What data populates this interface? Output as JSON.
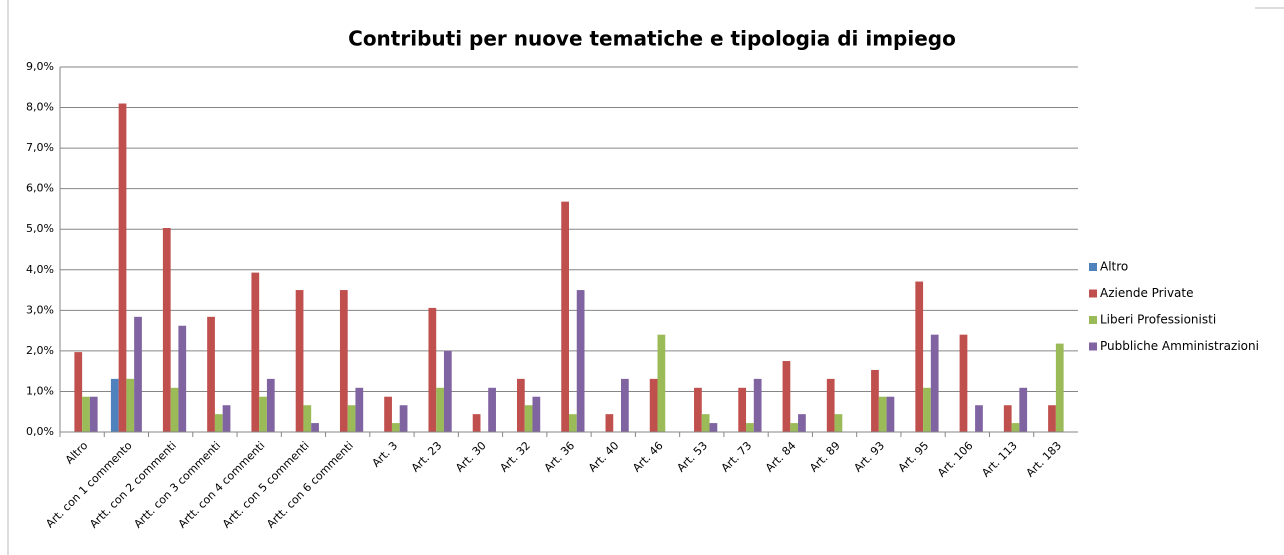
{
  "chart_data": {
    "type": "bar",
    "title": "Contributi per nuove tematiche e tipologia di impiego",
    "categories": [
      "Altro",
      "Art. con 1 commento",
      "Artt. con 2 commenti",
      "Artt. con 3 commenti",
      "Artt. con 4 commenti",
      "Artt. con 5 commenti",
      "Artt. con 6 commenti",
      "Art. 3",
      "Art. 23",
      "Art. 30",
      "Art. 32",
      "Art. 36",
      "Art. 40",
      "Art. 46",
      "Art. 53",
      "Art. 73",
      "Art. 84",
      "Art. 89",
      "Art. 93",
      "Art. 95",
      "Art. 106",
      "Art. 113",
      "Art. 183"
    ],
    "series": [
      {
        "name": "Altro",
        "color": "#4f81bd",
        "values": [
          0,
          1.31,
          0,
          0,
          0,
          0,
          0,
          0,
          0,
          0,
          0,
          0,
          0,
          0,
          0,
          0,
          0,
          0,
          0,
          0,
          0,
          0,
          0
        ]
      },
      {
        "name": "Aziende Private",
        "color": "#c0504d",
        "values": [
          1.97,
          8.1,
          5.03,
          2.84,
          3.93,
          3.5,
          3.5,
          0.87,
          3.06,
          0.44,
          1.31,
          5.68,
          0.44,
          1.31,
          1.09,
          1.09,
          1.75,
          1.31,
          1.53,
          3.71,
          2.4,
          0.66,
          0.66
        ]
      },
      {
        "name": "Liberi Professionisti",
        "color": "#9bbb59",
        "values": [
          0.87,
          1.31,
          1.09,
          0.44,
          0.87,
          0.66,
          0.66,
          0.22,
          1.09,
          0,
          0.66,
          0.44,
          0,
          2.4,
          0.44,
          0.22,
          0.22,
          0.44,
          0.87,
          1.09,
          0,
          0.22,
          2.18
        ]
      },
      {
        "name": "Pubbliche Amministrazioni",
        "color": "#8064a2",
        "values": [
          0.87,
          2.84,
          2.62,
          0.66,
          1.31,
          0.22,
          1.09,
          0.66,
          2.0,
          1.09,
          0.87,
          3.5,
          1.31,
          0,
          0.22,
          1.31,
          0.44,
          0,
          0.87,
          2.4,
          0.66,
          1.09,
          0
        ]
      }
    ],
    "ylim": [
      0,
      9
    ],
    "yticks": [
      {
        "value": 0,
        "label": "0,0%"
      },
      {
        "value": 1,
        "label": "1,0%"
      },
      {
        "value": 2,
        "label": "2,0%"
      },
      {
        "value": 3,
        "label": "3,0%"
      },
      {
        "value": 4,
        "label": "4,0%"
      },
      {
        "value": 5,
        "label": "5,0%"
      },
      {
        "value": 6,
        "label": "6,0%"
      },
      {
        "value": 7,
        "label": "7,0%"
      },
      {
        "value": 8,
        "label": "8,0%"
      },
      {
        "value": 9,
        "label": "9,0%"
      }
    ],
    "grid": true,
    "legend": "right"
  }
}
